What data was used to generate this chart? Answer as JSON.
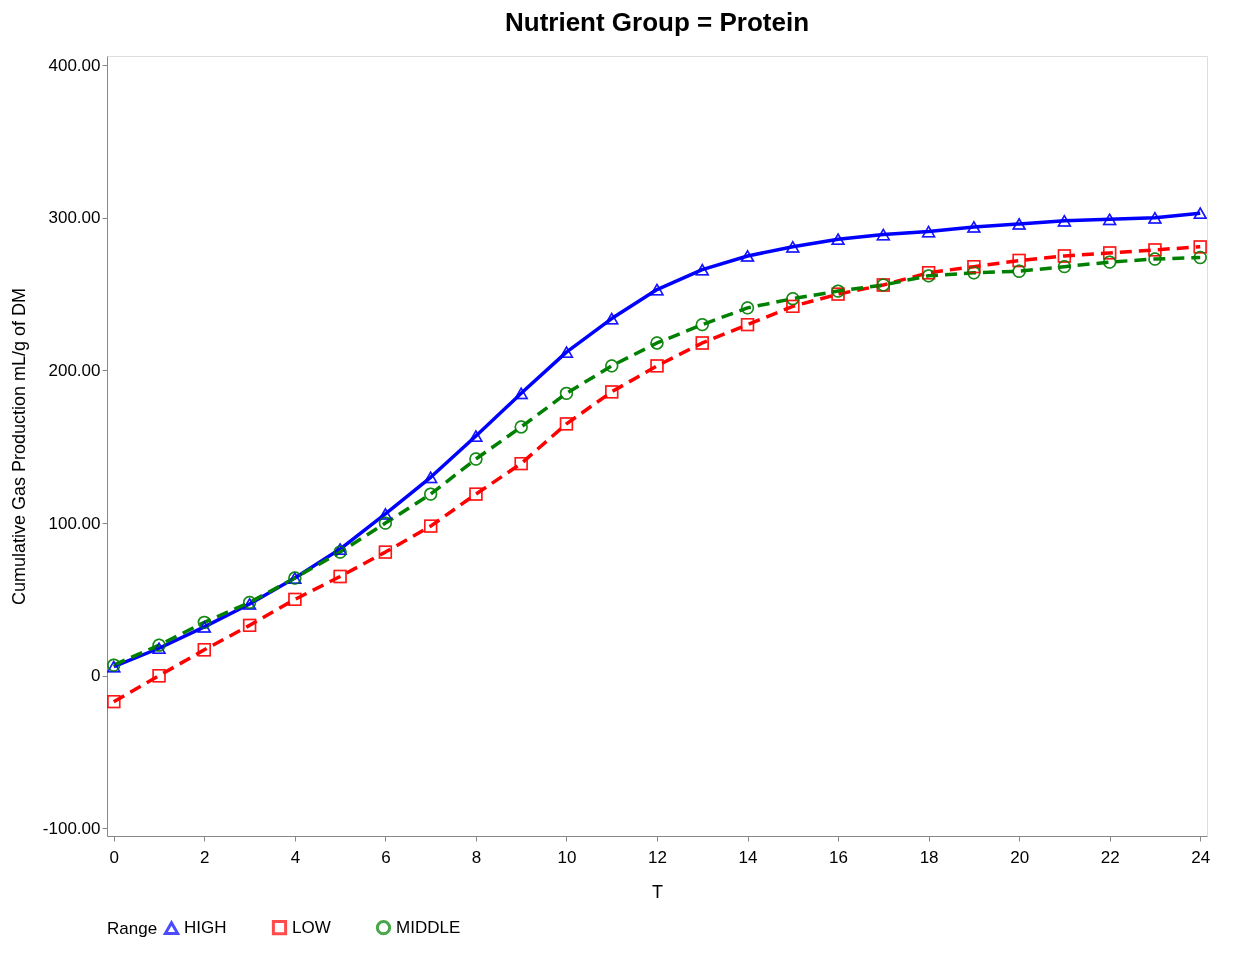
{
  "chart_data": {
    "type": "line",
    "title": "Nutrient Group = Protein",
    "xlabel": "T",
    "ylabel": "Cumulative Gas Production mL/g of DM",
    "legend_title": "Range",
    "x": [
      0,
      1,
      2,
      3,
      4,
      5,
      6,
      7,
      8,
      9,
      10,
      11,
      12,
      13,
      14,
      15,
      16,
      17,
      18,
      19,
      20,
      21,
      22,
      23,
      24
    ],
    "series": [
      {
        "name": "HIGH",
        "color": "#0000ff",
        "marker": "triangle",
        "line_style": "solid",
        "values": [
          6,
          18,
          32,
          47,
          64,
          83,
          106,
          130,
          157,
          185,
          212,
          234,
          253,
          266,
          275,
          281,
          286,
          289,
          291,
          294,
          296,
          298,
          299,
          300,
          303
        ]
      },
      {
        "name": "LOW",
        "color": "#ff0000",
        "marker": "square",
        "line_style": "dashed",
        "values": [
          -17,
          0,
          17,
          33,
          50,
          65,
          81,
          98,
          119,
          139,
          165,
          186,
          203,
          218,
          230,
          242,
          250,
          256,
          264,
          268,
          272,
          275,
          277,
          279,
          281
        ]
      },
      {
        "name": "MIDDLE",
        "color": "#008000",
        "marker": "circle",
        "line_style": "dashed",
        "values": [
          7,
          20,
          35,
          48,
          64,
          81,
          100,
          119,
          142,
          163,
          185,
          203,
          218,
          230,
          241,
          247,
          252,
          256,
          262,
          264,
          265,
          268,
          271,
          273,
          274
        ]
      }
    ],
    "xlim": [
      -0.15,
      24.15
    ],
    "xticks": [
      0,
      2,
      4,
      6,
      8,
      10,
      12,
      14,
      16,
      18,
      20,
      22,
      24
    ],
    "ylim": [
      -105,
      406
    ],
    "yticks": [
      {
        "value": -100,
        "label": "-100.00"
      },
      0,
      {
        "value": 100,
        "label": "100.00"
      },
      {
        "value": 200,
        "label": "200.00"
      },
      {
        "value": 300,
        "label": "300.00"
      },
      {
        "value": 400,
        "label": "400.00"
      }
    ],
    "grid": false,
    "legend": "bottom"
  }
}
